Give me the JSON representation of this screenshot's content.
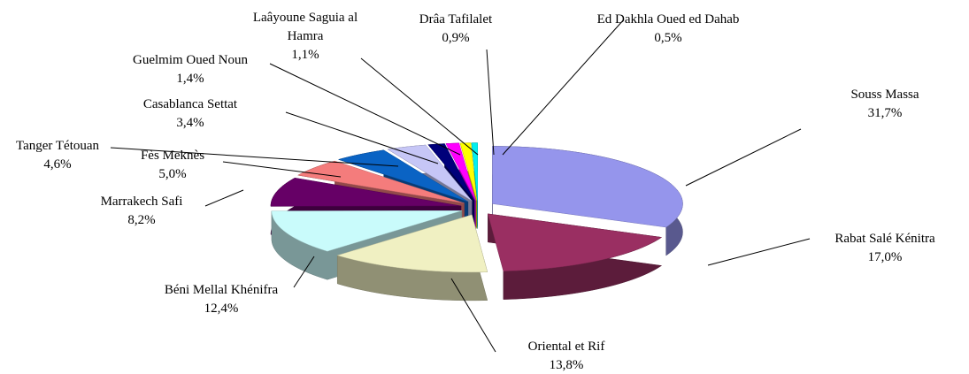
{
  "chart_data": {
    "type": "pie",
    "categories": [
      "Souss Massa",
      "Rabat Salé Kénitra",
      "Oriental et Rif",
      "Béni Mellal Khénifra",
      "Marrakech Safi",
      "Fès Meknès",
      "Tanger Tétouan",
      "Casablanca Settat",
      "Guelmim Oued Noun",
      "Laâyoune Saguia al Hamra",
      "Drâa Tafilalet",
      "Ed Dakhla Oued ed Dahab"
    ],
    "values": [
      31.7,
      17.0,
      13.8,
      12.4,
      8.2,
      5.0,
      4.6,
      3.4,
      1.4,
      1.1,
      0.9,
      0.5
    ],
    "value_labels": [
      "31,7%",
      "17,0%",
      "13,8%",
      "12,4%",
      "8,2%",
      "5,0%",
      "4,6%",
      "3,4%",
      "1,4%",
      "1,1%",
      "0,9%",
      "0,5%"
    ],
    "colors": [
      "#9595ec",
      "#9a2f62",
      "#f0f0c2",
      "#c9fbfb",
      "#660066",
      "#f47c7c",
      "#0a63c4",
      "#c6c6f6",
      "#00007a",
      "#ff00ff",
      "#ffff00",
      "#00f0f0"
    ]
  }
}
